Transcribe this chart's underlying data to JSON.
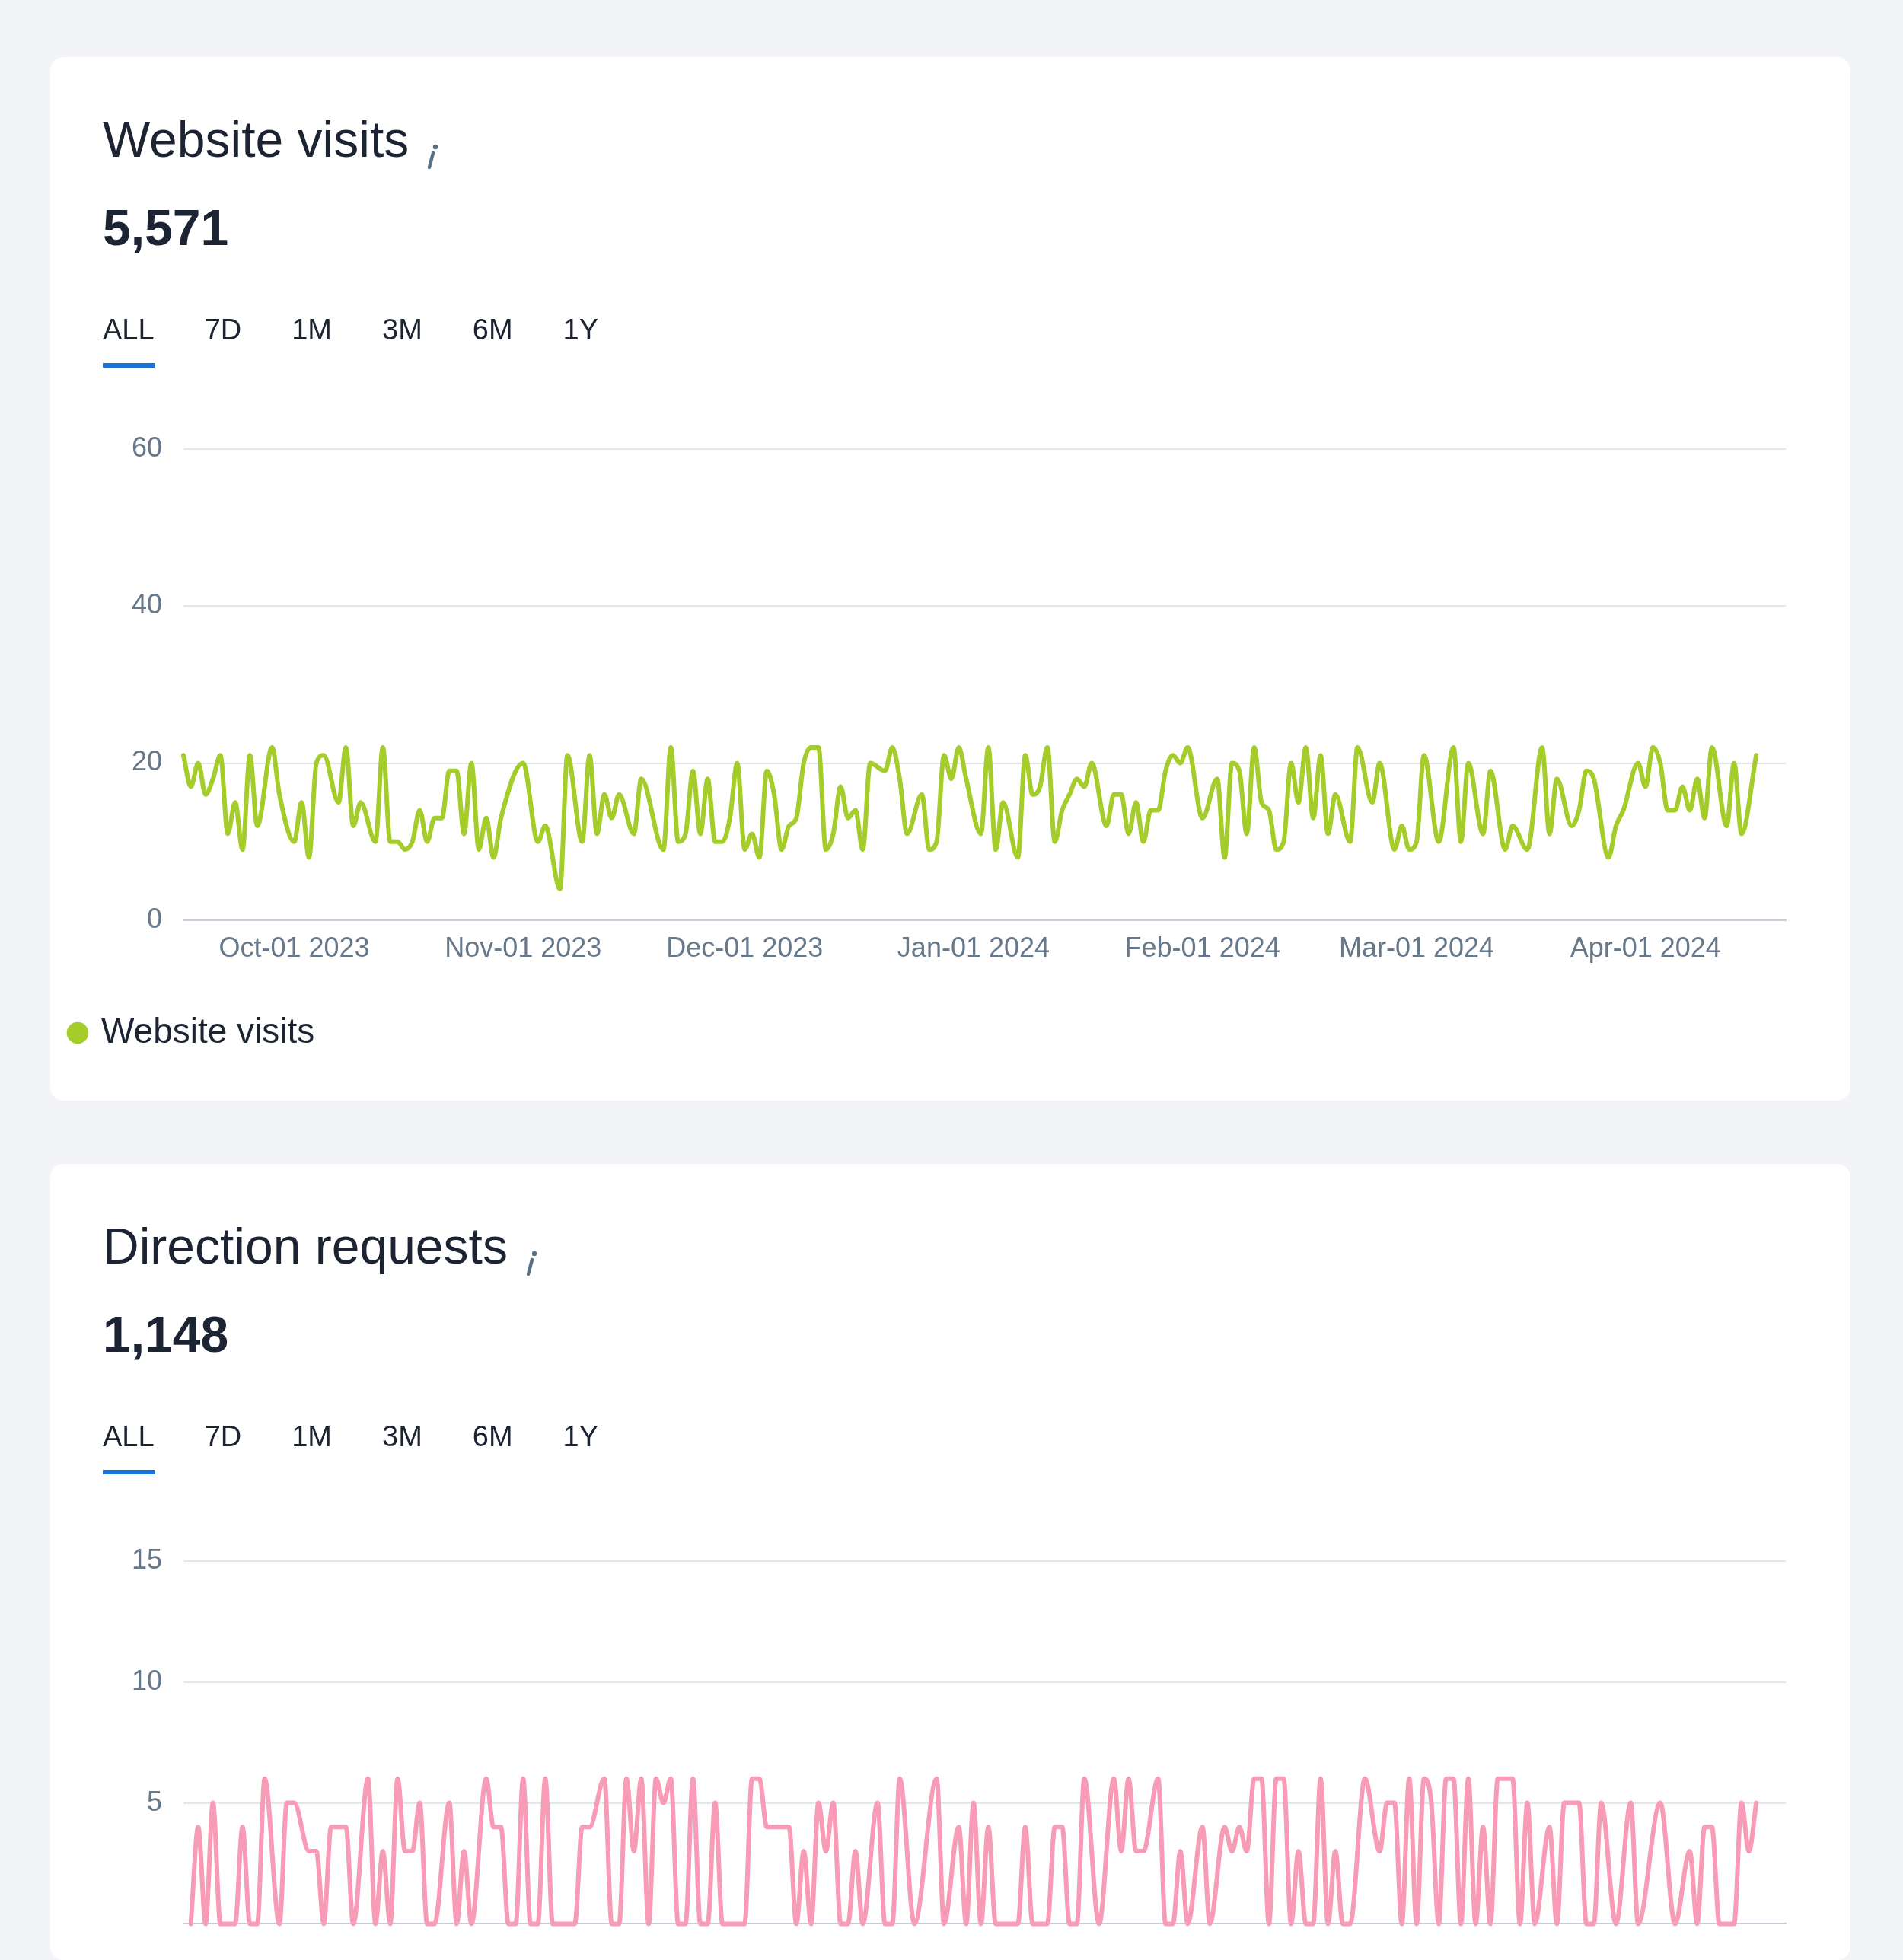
{
  "chart_data": [
    {
      "type": "line",
      "title": "Website visits",
      "subtitle": "5,571",
      "annotations": [
        "ALL",
        "7D",
        "1M",
        "3M",
        "6M",
        "1Y"
      ],
      "x": [
        "2023-09-16",
        "2023-09-17",
        "2023-09-18",
        "2023-09-19",
        "2023-09-20",
        "2023-09-21",
        "2023-09-22",
        "2023-09-23",
        "2023-09-24",
        "2023-09-25",
        "2023-09-26",
        "2023-09-28",
        "2023-09-29",
        "2023-10-01",
        "2023-10-02",
        "2023-10-03",
        "2023-10-04",
        "2023-10-05",
        "2023-10-07",
        "2023-10-08",
        "2023-10-09",
        "2023-10-10",
        "2023-10-12",
        "2023-10-13",
        "2023-10-14",
        "2023-10-15",
        "2023-10-16",
        "2023-10-17",
        "2023-10-18",
        "2023-10-19",
        "2023-10-20",
        "2023-10-21",
        "2023-10-22",
        "2023-10-23",
        "2023-10-24",
        "2023-10-25",
        "2023-10-26",
        "2023-10-27",
        "2023-10-28",
        "2023-10-29",
        "2023-11-01",
        "2023-11-03",
        "2023-11-04",
        "2023-11-06",
        "2023-11-07",
        "2023-11-09",
        "2023-11-10",
        "2023-11-11",
        "2023-11-12",
        "2023-11-13",
        "2023-11-14",
        "2023-11-16",
        "2023-11-17",
        "2023-11-20",
        "2023-11-21",
        "2023-11-22",
        "2023-11-23",
        "2023-11-24",
        "2023-11-25",
        "2023-11-26",
        "2023-11-27",
        "2023-11-28",
        "2023-11-29",
        "2023-11-30",
        "2023-12-01",
        "2023-12-02",
        "2023-12-03",
        "2023-12-04",
        "2023-12-05",
        "2023-12-06",
        "2023-12-07",
        "2023-12-08",
        "2023-12-09",
        "2023-12-10",
        "2023-12-11",
        "2023-12-12",
        "2023-12-13",
        "2023-12-14",
        "2023-12-15",
        "2023-12-16",
        "2023-12-17",
        "2023-12-18",
        "2023-12-20",
        "2023-12-21",
        "2023-12-22",
        "2023-12-23",
        "2023-12-25",
        "2023-12-26",
        "2023-12-27",
        "2023-12-28",
        "2023-12-29",
        "2023-12-30",
        "2023-12-31",
        "2024-01-02",
        "2024-01-03",
        "2024-01-04",
        "2024-01-05",
        "2024-01-07",
        "2024-01-08",
        "2024-01-09",
        "2024-01-10",
        "2024-01-11",
        "2024-01-12",
        "2024-01-13",
        "2024-01-14",
        "2024-01-15",
        "2024-01-16",
        "2024-01-17",
        "2024-01-19",
        "2024-01-20",
        "2024-01-21",
        "2024-01-22",
        "2024-01-23",
        "2024-01-24",
        "2024-01-25",
        "2024-01-26",
        "2024-01-27",
        "2024-01-28",
        "2024-01-29",
        "2024-01-30",
        "2024-02-01",
        "2024-02-03",
        "2024-02-04",
        "2024-02-05",
        "2024-02-06",
        "2024-02-07",
        "2024-02-08",
        "2024-02-09",
        "2024-02-10",
        "2024-02-11",
        "2024-02-12",
        "2024-02-13",
        "2024-02-14",
        "2024-02-15",
        "2024-02-16",
        "2024-02-17",
        "2024-02-18",
        "2024-02-19",
        "2024-02-21",
        "2024-02-22",
        "2024-02-24",
        "2024-02-25",
        "2024-02-27",
        "2024-02-28",
        "2024-02-29",
        "2024-03-01",
        "2024-03-02",
        "2024-03-04",
        "2024-03-06",
        "2024-03-07",
        "2024-03-08",
        "2024-03-10",
        "2024-03-11",
        "2024-03-13",
        "2024-03-14",
        "2024-03-16",
        "2024-03-18",
        "2024-03-19",
        "2024-03-20",
        "2024-03-22",
        "2024-03-23",
        "2024-03-24",
        "2024-03-25",
        "2024-03-27",
        "2024-03-28",
        "2024-03-29",
        "2024-03-31",
        "2024-04-01",
        "2024-04-02",
        "2024-04-03",
        "2024-04-04",
        "2024-04-05",
        "2024-04-06",
        "2024-04-07",
        "2024-04-08",
        "2024-04-09",
        "2024-04-10",
        "2024-04-12",
        "2024-04-13",
        "2024-04-14",
        "2024-04-16"
      ],
      "series": [
        {
          "name": "Website visits",
          "color": "#a4cc2b",
          "values": [
            21,
            17,
            20,
            16,
            18,
            21,
            11,
            15,
            9,
            21,
            12,
            22,
            16,
            10,
            15,
            8,
            20,
            21,
            15,
            22,
            12,
            15,
            10,
            22,
            10,
            10,
            9,
            10,
            14,
            10,
            13,
            13,
            19,
            19,
            11,
            20,
            9,
            13,
            8,
            13,
            20,
            10,
            12,
            4,
            21,
            10,
            21,
            11,
            16,
            13,
            16,
            11,
            18,
            9,
            22,
            10,
            11,
            19,
            11,
            18,
            10,
            10,
            13,
            20,
            9,
            11,
            8,
            19,
            16,
            9,
            12,
            13,
            20,
            22,
            22,
            9,
            11,
            17,
            13,
            14,
            9,
            20,
            19,
            22,
            18,
            11,
            16,
            9,
            10,
            21,
            18,
            22,
            18,
            11,
            22,
            9,
            15,
            8,
            21,
            16,
            17,
            22,
            10,
            14,
            16,
            18,
            17,
            20,
            12,
            16,
            16,
            11,
            15,
            10,
            14,
            14,
            19,
            21,
            20,
            22,
            13,
            18,
            8,
            20,
            19,
            11,
            22,
            15,
            14,
            9,
            10,
            20,
            15,
            22,
            13,
            21,
            11,
            16,
            10,
            22,
            15,
            20,
            9,
            12,
            9,
            10,
            21,
            10,
            22,
            10,
            20,
            11,
            19,
            9,
            12,
            9,
            22,
            11,
            18,
            12,
            14,
            19,
            18,
            8,
            12,
            14,
            20,
            17,
            22,
            20,
            14,
            14,
            17,
            14,
            18,
            13,
            22,
            12,
            20,
            11,
            21
          ]
        }
      ],
      "xlim": [
        "2023-09-16",
        "2024-04-20"
      ],
      "xticks": [
        {
          "value": "2023-10-01",
          "label": "Oct-01 2023"
        },
        {
          "value": "2023-11-01",
          "label": "Nov-01 2023"
        },
        {
          "value": "2023-12-01",
          "label": "Dec-01 2023"
        },
        {
          "value": "2024-01-01",
          "label": "Jan-01 2024"
        },
        {
          "value": "2024-02-01",
          "label": "Feb-01 2024"
        },
        {
          "value": "2024-03-01",
          "label": "Mar-01 2024"
        },
        {
          "value": "2024-04-01",
          "label": "Apr-01 2024"
        }
      ],
      "ylim": [
        0,
        60
      ],
      "yticks": [
        0,
        20,
        40,
        60
      ],
      "grid": "y",
      "legend": "bottom left"
    },
    {
      "type": "line",
      "title": "Direction requests",
      "subtitle": "1,148",
      "annotations": [
        "ALL",
        "7D",
        "1M",
        "3M",
        "6M",
        "1Y"
      ],
      "x": [
        "2023-09-17",
        "2023-09-18",
        "2023-09-19",
        "2023-09-20",
        "2023-09-21",
        "2023-09-23",
        "2023-09-24",
        "2023-09-25",
        "2023-09-26",
        "2023-09-27",
        "2023-09-29",
        "2023-09-30",
        "2023-10-01",
        "2023-10-03",
        "2023-10-04",
        "2023-10-05",
        "2023-10-06",
        "2023-10-08",
        "2023-10-09",
        "2023-10-11",
        "2023-10-12",
        "2023-10-13",
        "2023-10-14",
        "2023-10-15",
        "2023-10-16",
        "2023-10-17",
        "2023-10-18",
        "2023-10-19",
        "2023-10-20",
        "2023-10-22",
        "2023-10-23",
        "2023-10-24",
        "2023-10-25",
        "2023-10-27",
        "2023-10-28",
        "2023-10-29",
        "2023-10-30",
        "2023-10-31",
        "2023-11-01",
        "2023-11-02",
        "2023-11-03",
        "2023-11-04",
        "2023-11-05",
        "2023-11-08",
        "2023-11-09",
        "2023-11-10",
        "2023-11-12",
        "2023-11-13",
        "2023-11-14",
        "2023-11-15",
        "2023-11-16",
        "2023-11-17",
        "2023-11-18",
        "2023-11-19",
        "2023-11-20",
        "2023-11-21",
        "2023-11-22",
        "2023-11-23",
        "2023-11-24",
        "2023-11-25",
        "2023-11-26",
        "2023-11-27",
        "2023-11-28",
        "2023-12-01",
        "2023-12-02",
        "2023-12-03",
        "2023-12-04",
        "2023-12-07",
        "2023-12-08",
        "2023-12-09",
        "2023-12-10",
        "2023-12-11",
        "2023-12-12",
        "2023-12-13",
        "2023-12-14",
        "2023-12-15",
        "2023-12-16",
        "2023-12-17",
        "2023-12-19",
        "2023-12-20",
        "2023-12-21",
        "2023-12-22",
        "2023-12-24",
        "2023-12-27",
        "2023-12-28",
        "2023-12-30",
        "2023-12-31",
        "2024-01-01",
        "2024-01-02",
        "2024-01-03",
        "2024-01-04",
        "2024-01-07",
        "2024-01-08",
        "2024-01-09",
        "2024-01-11",
        "2024-01-12",
        "2024-01-13",
        "2024-01-14",
        "2024-01-15",
        "2024-01-16",
        "2024-01-18",
        "2024-01-20",
        "2024-01-21",
        "2024-01-22",
        "2024-01-23",
        "2024-01-24",
        "2024-01-26",
        "2024-01-27",
        "2024-01-28",
        "2024-01-29",
        "2024-01-30",
        "2024-02-01",
        "2024-02-02",
        "2024-02-04",
        "2024-02-05",
        "2024-02-06",
        "2024-02-07",
        "2024-02-08",
        "2024-02-09",
        "2024-02-10",
        "2024-02-11",
        "2024-02-12",
        "2024-02-13",
        "2024-02-14",
        "2024-02-15",
        "2024-02-16",
        "2024-02-17",
        "2024-02-18",
        "2024-02-19",
        "2024-02-20",
        "2024-02-21",
        "2024-02-23",
        "2024-02-25",
        "2024-02-26",
        "2024-02-27",
        "2024-02-28",
        "2024-02-29",
        "2024-03-01",
        "2024-03-02",
        "2024-03-03",
        "2024-03-04",
        "2024-03-05",
        "2024-03-06",
        "2024-03-07",
        "2024-03-08",
        "2024-03-09",
        "2024-03-10",
        "2024-03-11",
        "2024-03-12",
        "2024-03-13",
        "2024-03-14",
        "2024-03-15",
        "2024-03-16",
        "2024-03-17",
        "2024-03-19",
        "2024-03-20",
        "2024-03-21",
        "2024-03-23",
        "2024-03-24",
        "2024-03-25",
        "2024-03-26",
        "2024-03-28",
        "2024-03-30",
        "2024-03-31",
        "2024-04-03",
        "2024-04-05",
        "2024-04-07",
        "2024-04-08",
        "2024-04-09",
        "2024-04-10",
        "2024-04-11",
        "2024-04-13",
        "2024-04-14",
        "2024-04-15",
        "2024-04-16"
      ],
      "series": [
        {
          "color": "#f79bb6",
          "values": [
            0,
            4,
            0,
            5,
            0,
            0,
            4,
            0,
            0,
            6,
            0,
            5,
            5,
            3,
            3,
            0,
            4,
            4,
            0,
            6,
            0,
            3,
            0,
            6,
            3,
            3,
            5,
            0,
            0,
            5,
            0,
            3,
            0,
            6,
            4,
            4,
            0,
            0,
            6,
            0,
            0,
            6,
            0,
            0,
            4,
            4,
            6,
            0,
            0,
            6,
            3,
            6,
            0,
            6,
            5,
            6,
            0,
            0,
            6,
            0,
            0,
            5,
            0,
            0,
            6,
            6,
            4,
            4,
            0,
            3,
            0,
            5,
            3,
            5,
            0,
            0,
            3,
            0,
            5,
            0,
            0,
            6,
            0,
            6,
            0,
            4,
            0,
            5,
            0,
            4,
            0,
            0,
            4,
            0,
            0,
            4,
            4,
            0,
            0,
            6,
            0,
            6,
            3,
            6,
            3,
            3,
            6,
            0,
            0,
            3,
            0,
            4,
            0,
            4,
            3,
            4,
            3,
            6,
            6,
            0,
            6,
            6,
            0,
            3,
            0,
            0,
            6,
            0,
            3,
            0,
            0,
            6,
            3,
            5,
            5,
            0,
            6,
            0,
            6,
            5,
            0,
            6,
            6,
            0,
            6,
            0,
            4,
            0,
            6,
            6,
            6,
            0,
            5,
            0,
            4,
            0,
            5,
            5,
            0,
            0,
            5,
            0,
            5,
            0,
            5,
            0,
            3,
            0,
            4,
            4,
            0,
            0,
            5,
            3,
            5
          ]
        }
      ],
      "xlim": [
        "2023-09-16",
        "2024-04-20"
      ],
      "ylim": [
        0,
        15
      ],
      "yticks": [
        5,
        10,
        15
      ],
      "grid": "y",
      "tick_labels": "y"
    }
  ]
}
